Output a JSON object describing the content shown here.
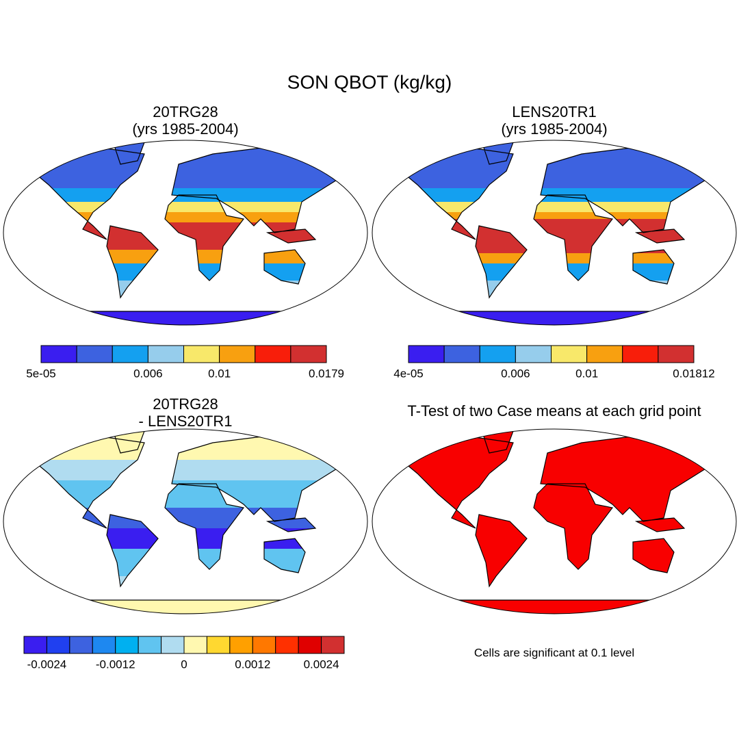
{
  "title": "SON QBOT (kg/kg)",
  "panels": [
    {
      "title": "20TRG28",
      "subtitle": "(yrs 1985-2004)",
      "colorbar": {
        "colors": [
          "#3a1ef0",
          "#3d62e0",
          "#14a0f0",
          "#96cdec",
          "#f8e86a",
          "#f8a010",
          "#f81e0a",
          "#d23030"
        ],
        "labels": [
          "5e-05",
          "0.006",
          "0.01",
          "0.0179"
        ]
      }
    },
    {
      "title": "LENS20TR1",
      "subtitle": "(yrs 1985-2004)",
      "colorbar": {
        "colors": [
          "#3a1ef0",
          "#3d62e0",
          "#14a0f0",
          "#96cdec",
          "#f8e86a",
          "#f8a010",
          "#f81e0a",
          "#d23030"
        ],
        "labels": [
          "4e-05",
          "0.006",
          "0.01",
          "0.01812"
        ]
      }
    },
    {
      "title": "20TRG28",
      "subtitle": "- LENS20TR1",
      "colorbar": {
        "colors": [
          "#3a1ef0",
          "#2040f0",
          "#3d62e0",
          "#1e88f0",
          "#00b0f0",
          "#60c4f0",
          "#b0dcf0",
          "#fff8b0",
          "#ffd830",
          "#ffa000",
          "#ff7800",
          "#ff3000",
          "#e00000",
          "#d23030"
        ],
        "labels": [
          "-0.0024",
          "-0.0012",
          "0",
          "0.0012",
          "0.0024"
        ]
      }
    },
    {
      "title": "T-Test of two Case means at each grid point",
      "note": "Cells are significant at 0.1 level"
    }
  ]
}
